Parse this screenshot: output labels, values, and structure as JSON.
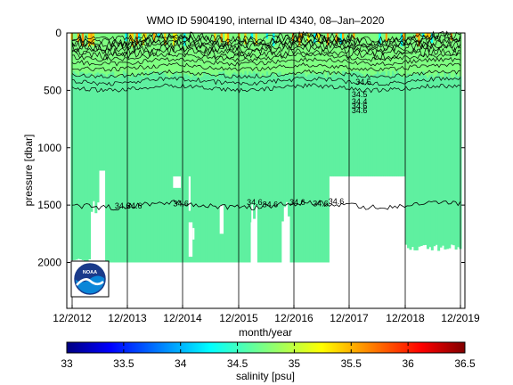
{
  "chart_data": {
    "type": "heatmap",
    "title": "WMO ID 5904190, internal ID 4340, 08–Jan–2020",
    "xlabel": "month/year",
    "ylabel": "pressure [dbar]",
    "x_tick_labels": [
      "12/2012",
      "12/2013",
      "12/2014",
      "12/2015",
      "12/2016",
      "12/2017",
      "12/2018",
      "12/2019"
    ],
    "y_ticks": [
      0,
      500,
      1000,
      1500,
      2000
    ],
    "ylim": [
      2400,
      0
    ],
    "xlim": [
      "11/2012",
      "01/2020"
    ],
    "y_reversed": true,
    "grid": "vertical lines at each December",
    "colorbar": {
      "label": "salinity [psu]",
      "ticks": [
        33,
        33.5,
        34,
        34.5,
        35,
        35.5,
        36,
        36.5
      ],
      "range": [
        33,
        36.5
      ],
      "colormap": "jet"
    },
    "fill_value_psu": 34.6,
    "fill_color": "#5ff0a0",
    "upper_layer_color": "#80ff80",
    "contour_labels": [
      "34.5",
      "34.6",
      "34.6",
      "34.6",
      "34.6",
      "34.6",
      "34.6",
      "34.6",
      "34.6",
      "34.4",
      "34.5",
      "34.6",
      "34.6"
    ],
    "profile_depth_dbar": {
      "early": 2000,
      "mid": 1250,
      "late": 1900
    },
    "contour_34_6_depth_dbar": 1500
  },
  "logo": {
    "text": "NOAA"
  }
}
